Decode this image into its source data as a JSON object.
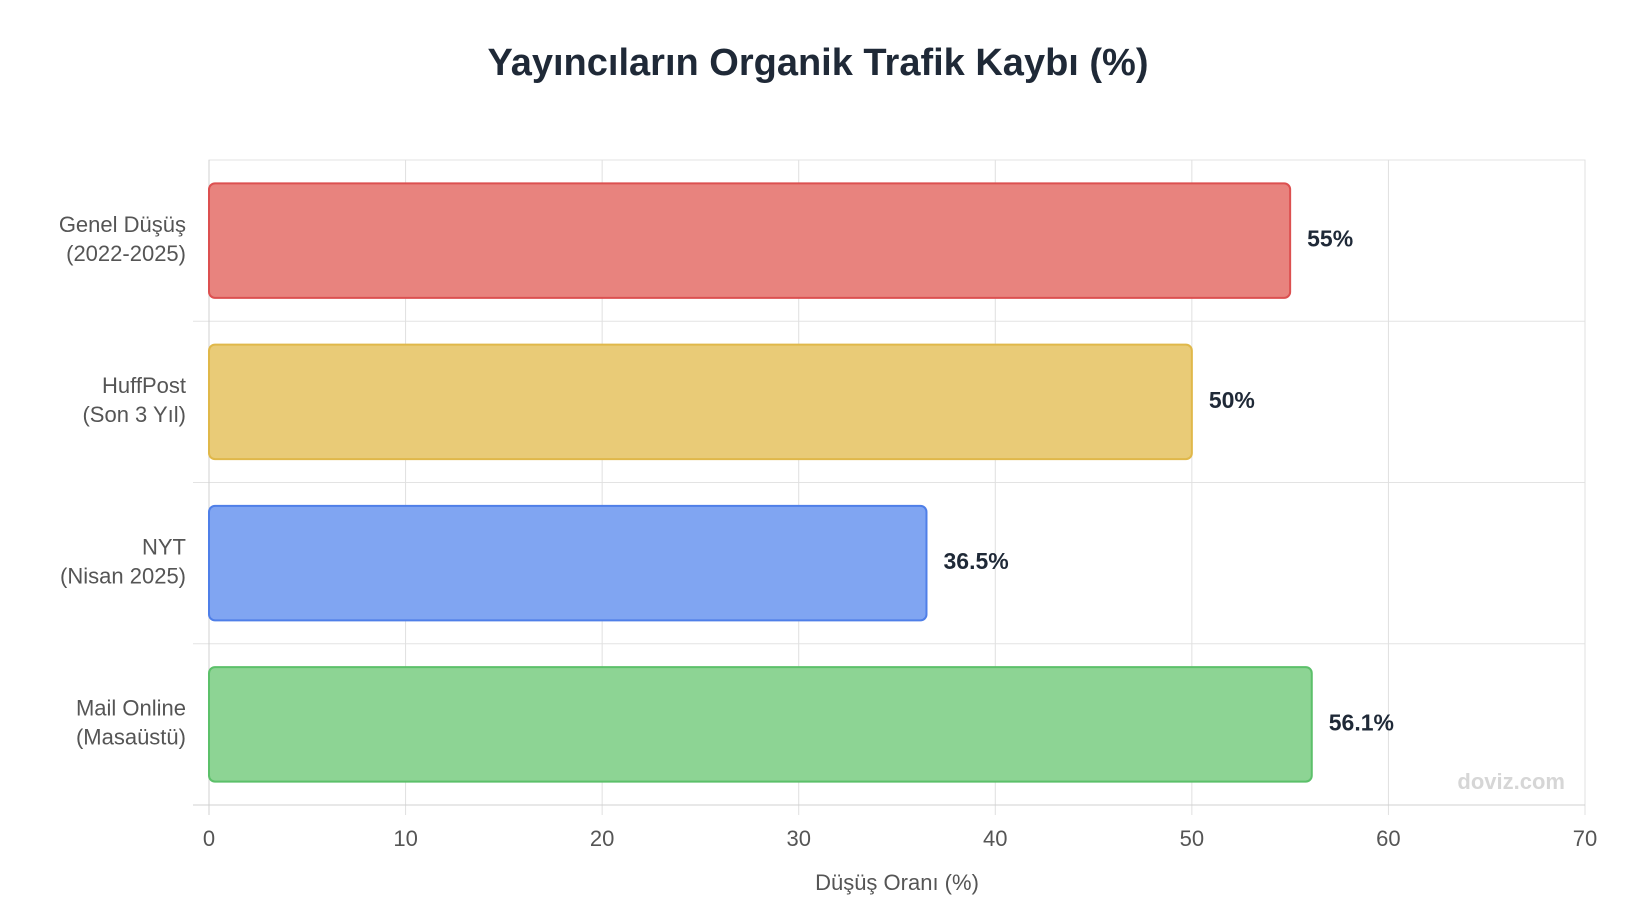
{
  "chart_data": {
    "type": "barh",
    "title": "Yayıncıların Organik Trafik Kaybı (%)",
    "categories": [
      [
        "Genel Düşüş",
        "(2022-2025)"
      ],
      [
        "HuffPost",
        "(Son 3 Yıl)"
      ],
      [
        "NYT",
        "(Nisan 2025)"
      ],
      [
        "Mail Online",
        "(Masaüstü)"
      ]
    ],
    "values": [
      55,
      50,
      36.5,
      56.1
    ],
    "value_labels": [
      "55%",
      "50%",
      "36.5%",
      "56.1%"
    ],
    "colors": [
      "#e8837e",
      "#e9cb77",
      "#80a5f2",
      "#8dd494"
    ],
    "border_colors": [
      "#dc5050",
      "#e0b84a",
      "#4f7fe8",
      "#5cc06a"
    ],
    "xlabel": "Düşüş Oranı (%)",
    "xlim": [
      0,
      70
    ],
    "xticks": [
      0,
      10,
      20,
      30,
      40,
      50,
      60,
      70
    ],
    "grid": true,
    "watermark": "doviz.com"
  }
}
